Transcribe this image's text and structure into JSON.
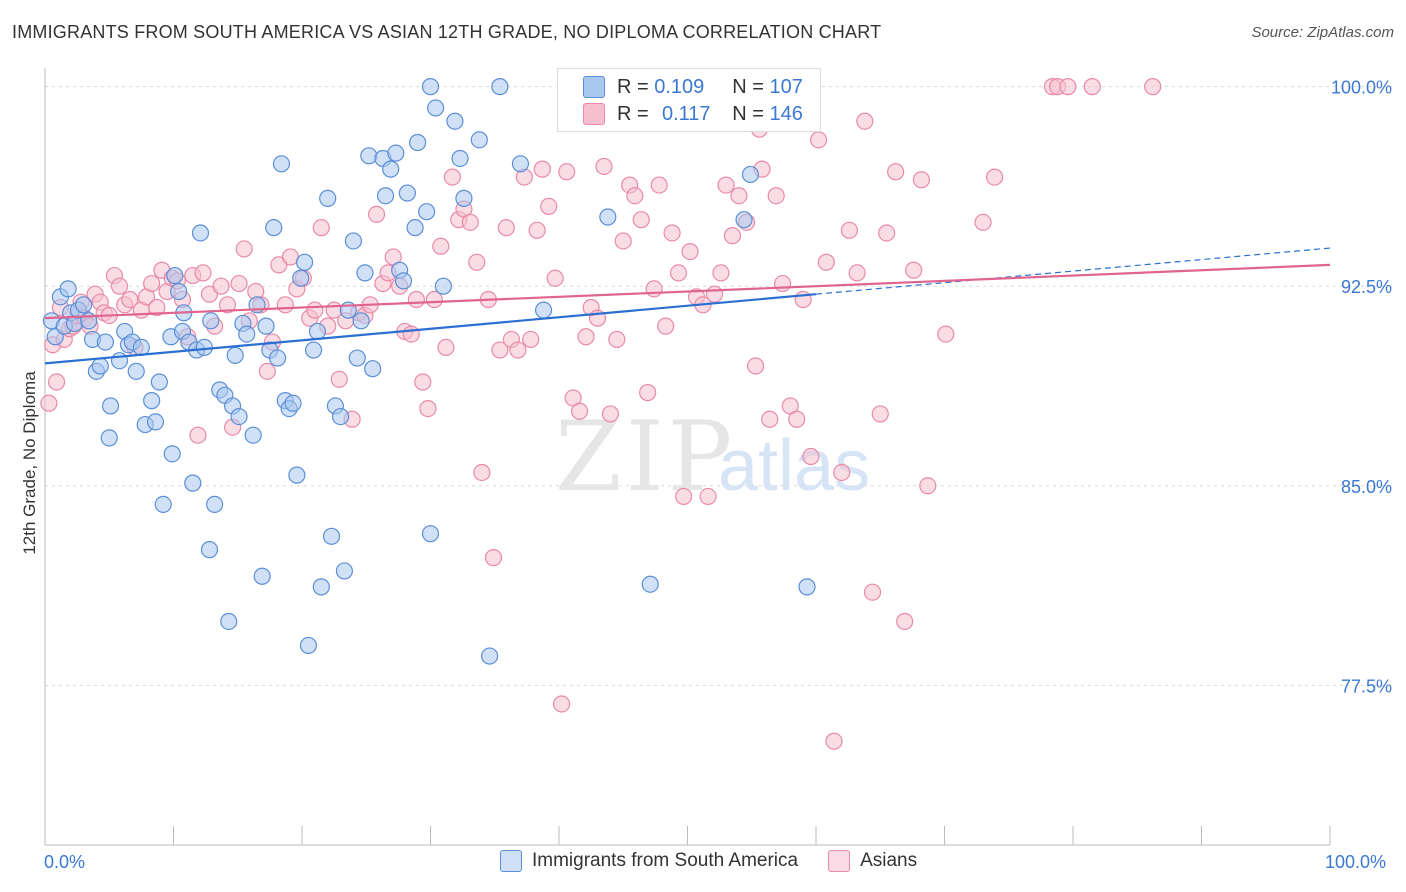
{
  "title": "IMMIGRANTS FROM SOUTH AMERICA VS ASIAN 12TH GRADE, NO DIPLOMA CORRELATION CHART",
  "source": "Source: ZipAtlas.com",
  "watermark": {
    "zip": "ZIP",
    "atlas": "atlas"
  },
  "legend": {
    "r_label": "R =",
    "n_label": "N =",
    "series1": {
      "r": "0.109",
      "n": "107"
    },
    "series2": {
      "r": "0.117",
      "n": "146"
    }
  },
  "colors": {
    "blue_fill": "#a9c8f0",
    "blue_stroke": "#5b8fd6",
    "blue_line": "#2a6fd1",
    "pink_fill": "#f6bfd0",
    "pink_stroke": "#e98aa8",
    "pink_line": "#e0648e",
    "tick_label": "#3b78d4",
    "grid": "#d8d8d8"
  },
  "chart_data": {
    "type": "scatter",
    "title": "IMMIGRANTS FROM SOUTH AMERICA VS ASIAN 12TH GRADE, NO DIPLOMA CORRELATION CHART",
    "xlabel": "",
    "ylabel": "12th Grade, No Diploma",
    "x_tick_labels": [
      "0.0%",
      "100.0%"
    ],
    "y_tick_labels": [
      "100.0%",
      "92.5%",
      "85.0%",
      "77.5%"
    ],
    "y_ticks": [
      100.0,
      92.5,
      85.0,
      77.5
    ],
    "xlim": [
      0,
      100
    ],
    "ylim": [
      71.5,
      100.7
    ],
    "grid": "horizontal dashed",
    "series": [
      {
        "name": "Immigrants from South America",
        "color": "#a9c8f0",
        "trend": {
          "x": [
            0,
            60
          ],
          "y": [
            89.6,
            92.2
          ]
        },
        "points": [
          [
            0.5,
            91.2
          ],
          [
            0.8,
            90.6
          ],
          [
            1.2,
            92.1
          ],
          [
            1.5,
            91.0
          ],
          [
            1.8,
            92.4
          ],
          [
            2.0,
            91.5
          ],
          [
            2.3,
            91.1
          ],
          [
            2.6,
            91.6
          ],
          [
            3.0,
            91.8
          ],
          [
            3.4,
            91.2
          ],
          [
            3.7,
            90.5
          ],
          [
            4.0,
            89.3
          ],
          [
            4.3,
            89.5
          ],
          [
            4.7,
            90.4
          ],
          [
            5.1,
            88.0
          ],
          [
            5.0,
            86.8
          ],
          [
            5.8,
            89.7
          ],
          [
            6.2,
            90.8
          ],
          [
            6.5,
            90.3
          ],
          [
            6.8,
            90.4
          ],
          [
            7.1,
            89.3
          ],
          [
            7.5,
            90.2
          ],
          [
            7.8,
            87.3
          ],
          [
            8.3,
            88.2
          ],
          [
            8.6,
            87.4
          ],
          [
            8.9,
            88.9
          ],
          [
            9.2,
            84.3
          ],
          [
            9.8,
            90.6
          ],
          [
            9.9,
            86.2
          ],
          [
            10.1,
            92.9
          ],
          [
            10.4,
            92.3
          ],
          [
            10.7,
            90.8
          ],
          [
            10.8,
            91.5
          ],
          [
            11.2,
            90.4
          ],
          [
            11.5,
            85.1
          ],
          [
            11.8,
            90.1
          ],
          [
            12.1,
            94.5
          ],
          [
            12.4,
            90.2
          ],
          [
            12.8,
            82.6
          ],
          [
            12.9,
            91.2
          ],
          [
            13.2,
            84.3
          ],
          [
            13.6,
            88.6
          ],
          [
            14.0,
            88.4
          ],
          [
            14.3,
            79.9
          ],
          [
            14.6,
            88.0
          ],
          [
            14.8,
            89.9
          ],
          [
            15.1,
            87.6
          ],
          [
            15.4,
            91.1
          ],
          [
            15.7,
            90.7
          ],
          [
            16.2,
            86.9
          ],
          [
            16.5,
            91.8
          ],
          [
            16.9,
            81.6
          ],
          [
            17.2,
            91.0
          ],
          [
            17.5,
            90.1
          ],
          [
            17.8,
            94.7
          ],
          [
            18.1,
            89.8
          ],
          [
            18.4,
            97.1
          ],
          [
            18.7,
            88.2
          ],
          [
            19.0,
            87.9
          ],
          [
            19.3,
            88.1
          ],
          [
            19.6,
            85.4
          ],
          [
            19.9,
            92.8
          ],
          [
            20.2,
            93.4
          ],
          [
            20.5,
            79.0
          ],
          [
            20.9,
            90.1
          ],
          [
            21.2,
            90.8
          ],
          [
            21.5,
            81.2
          ],
          [
            22.0,
            95.8
          ],
          [
            22.3,
            83.1
          ],
          [
            22.6,
            88.0
          ],
          [
            23.0,
            87.6
          ],
          [
            23.3,
            81.8
          ],
          [
            23.6,
            91.6
          ],
          [
            24.0,
            94.2
          ],
          [
            24.3,
            89.8
          ],
          [
            24.6,
            91.2
          ],
          [
            24.9,
            93.0
          ],
          [
            25.2,
            97.4
          ],
          [
            25.5,
            89.4
          ],
          [
            26.3,
            97.3
          ],
          [
            26.5,
            95.9
          ],
          [
            26.9,
            96.9
          ],
          [
            27.3,
            97.5
          ],
          [
            27.6,
            93.1
          ],
          [
            27.9,
            92.7
          ],
          [
            28.2,
            96.0
          ],
          [
            28.8,
            94.7
          ],
          [
            29.0,
            97.9
          ],
          [
            29.7,
            95.3
          ],
          [
            30.0,
            83.2
          ],
          [
            30.4,
            99.2
          ],
          [
            31.0,
            92.5
          ],
          [
            31.9,
            98.7
          ],
          [
            32.3,
            97.3
          ],
          [
            32.6,
            95.8
          ],
          [
            33.8,
            98.0
          ],
          [
            34.6,
            78.6
          ],
          [
            35.4,
            100.0
          ],
          [
            37.0,
            97.1
          ],
          [
            30.0,
            100.0
          ],
          [
            38.8,
            91.6
          ],
          [
            43.8,
            95.1
          ],
          [
            47.1,
            81.3
          ],
          [
            54.4,
            95.0
          ],
          [
            54.9,
            96.7
          ],
          [
            59.3,
            81.2
          ]
        ]
      },
      {
        "name": "Asians",
        "color": "#f6bfd0",
        "trend": {
          "x": [
            0,
            100
          ],
          "y": [
            91.3,
            93.3
          ]
        },
        "points": [
          [
            0.3,
            88.1
          ],
          [
            0.6,
            90.3
          ],
          [
            0.9,
            88.9
          ],
          [
            1.2,
            91.7
          ],
          [
            1.5,
            90.5
          ],
          [
            1.9,
            90.9
          ],
          [
            2.2,
            91.0
          ],
          [
            2.5,
            91.4
          ],
          [
            2.8,
            91.9
          ],
          [
            3.1,
            91.3
          ],
          [
            3.5,
            91.0
          ],
          [
            3.9,
            92.2
          ],
          [
            4.3,
            91.9
          ],
          [
            4.6,
            91.5
          ],
          [
            5.0,
            91.4
          ],
          [
            5.4,
            92.9
          ],
          [
            5.8,
            92.5
          ],
          [
            6.2,
            91.8
          ],
          [
            6.6,
            92.0
          ],
          [
            7.0,
            90.2
          ],
          [
            7.5,
            91.6
          ],
          [
            7.9,
            92.1
          ],
          [
            8.3,
            92.6
          ],
          [
            8.7,
            91.7
          ],
          [
            9.1,
            93.1
          ],
          [
            9.5,
            92.3
          ],
          [
            9.9,
            92.8
          ],
          [
            10.3,
            92.7
          ],
          [
            10.7,
            92.0
          ],
          [
            11.1,
            90.6
          ],
          [
            11.5,
            92.9
          ],
          [
            11.9,
            86.9
          ],
          [
            12.3,
            93.0
          ],
          [
            12.8,
            92.2
          ],
          [
            13.2,
            91.0
          ],
          [
            13.7,
            92.5
          ],
          [
            14.2,
            91.8
          ],
          [
            14.6,
            87.2
          ],
          [
            15.1,
            92.6
          ],
          [
            15.5,
            93.9
          ],
          [
            15.9,
            91.2
          ],
          [
            16.4,
            92.3
          ],
          [
            16.8,
            91.8
          ],
          [
            17.3,
            89.3
          ],
          [
            17.7,
            90.4
          ],
          [
            18.2,
            93.3
          ],
          [
            18.7,
            91.8
          ],
          [
            19.1,
            93.6
          ],
          [
            19.6,
            92.4
          ],
          [
            20.1,
            92.8
          ],
          [
            20.6,
            91.3
          ],
          [
            21.0,
            91.6
          ],
          [
            21.5,
            94.7
          ],
          [
            22.0,
            91.0
          ],
          [
            22.5,
            91.6
          ],
          [
            22.9,
            89.0
          ],
          [
            23.4,
            91.2
          ],
          [
            23.9,
            87.5
          ],
          [
            24.4,
            91.5
          ],
          [
            24.9,
            91.4
          ],
          [
            25.3,
            91.8
          ],
          [
            25.8,
            95.2
          ],
          [
            26.3,
            92.6
          ],
          [
            26.7,
            93.0
          ],
          [
            27.1,
            93.6
          ],
          [
            27.6,
            92.5
          ],
          [
            28.0,
            90.8
          ],
          [
            28.5,
            90.7
          ],
          [
            28.9,
            92.0
          ],
          [
            29.4,
            88.9
          ],
          [
            29.8,
            87.9
          ],
          [
            30.3,
            92.0
          ],
          [
            30.8,
            94.0
          ],
          [
            31.2,
            90.2
          ],
          [
            31.7,
            96.6
          ],
          [
            32.2,
            95.0
          ],
          [
            32.6,
            95.4
          ],
          [
            33.1,
            94.9
          ],
          [
            33.6,
            93.4
          ],
          [
            34.0,
            85.5
          ],
          [
            34.5,
            92.0
          ],
          [
            34.9,
            82.3
          ],
          [
            35.4,
            90.1
          ],
          [
            35.9,
            94.7
          ],
          [
            36.3,
            90.5
          ],
          [
            36.8,
            90.1
          ],
          [
            37.3,
            96.6
          ],
          [
            37.8,
            90.5
          ],
          [
            38.3,
            94.6
          ],
          [
            38.7,
            96.9
          ],
          [
            39.2,
            95.5
          ],
          [
            39.7,
            92.8
          ],
          [
            40.2,
            76.8
          ],
          [
            40.6,
            96.8
          ],
          [
            41.1,
            88.3
          ],
          [
            41.6,
            87.8
          ],
          [
            42.1,
            90.6
          ],
          [
            42.5,
            91.7
          ],
          [
            43.0,
            91.3
          ],
          [
            43.5,
            97.0
          ],
          [
            44.0,
            87.7
          ],
          [
            44.5,
            90.5
          ],
          [
            45.0,
            94.2
          ],
          [
            45.5,
            96.3
          ],
          [
            45.9,
            95.9
          ],
          [
            46.4,
            95.0
          ],
          [
            46.9,
            88.5
          ],
          [
            47.4,
            92.4
          ],
          [
            47.8,
            96.3
          ],
          [
            48.3,
            91.0
          ],
          [
            48.8,
            94.5
          ],
          [
            49.3,
            93.0
          ],
          [
            49.7,
            84.6
          ],
          [
            50.2,
            93.8
          ],
          [
            50.7,
            92.1
          ],
          [
            51.2,
            91.8
          ],
          [
            51.6,
            84.6
          ],
          [
            52.1,
            92.2
          ],
          [
            52.6,
            93.0
          ],
          [
            53.0,
            96.3
          ],
          [
            53.5,
            94.4
          ],
          [
            54.0,
            95.9
          ],
          [
            54.6,
            94.9
          ],
          [
            55.3,
            89.5
          ],
          [
            55.8,
            96.9
          ],
          [
            56.4,
            87.5
          ],
          [
            56.9,
            95.9
          ],
          [
            57.4,
            92.6
          ],
          [
            58.0,
            88.0
          ],
          [
            58.5,
            87.5
          ],
          [
            59.0,
            92.0
          ],
          [
            59.6,
            86.1
          ],
          [
            60.2,
            98.0
          ],
          [
            60.8,
            93.4
          ],
          [
            61.4,
            75.4
          ],
          [
            62.0,
            85.5
          ],
          [
            62.6,
            94.6
          ],
          [
            63.2,
            93.0
          ],
          [
            63.8,
            98.7
          ],
          [
            64.4,
            81.0
          ],
          [
            65.0,
            87.7
          ],
          [
            65.5,
            94.5
          ],
          [
            66.2,
            96.8
          ],
          [
            66.9,
            79.9
          ],
          [
            67.6,
            93.1
          ],
          [
            68.2,
            96.5
          ],
          [
            68.7,
            85.0
          ],
          [
            70.1,
            90.7
          ],
          [
            73.0,
            94.9
          ],
          [
            73.9,
            96.6
          ],
          [
            78.4,
            100.0
          ],
          [
            78.8,
            100.0
          ],
          [
            79.6,
            100.0
          ],
          [
            81.5,
            100.0
          ],
          [
            86.2,
            100.0
          ],
          [
            55.6,
            98.4
          ]
        ]
      }
    ]
  }
}
